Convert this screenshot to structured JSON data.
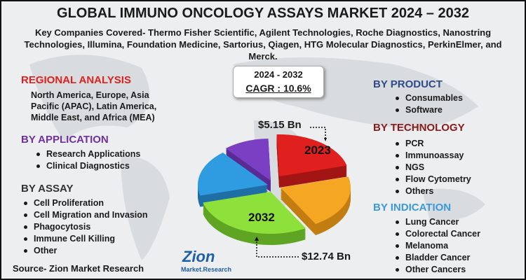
{
  "header": {
    "title": "GLOBAL IMMUNO ONCOLOGY ASSAYS MARKET 2024 – 2032",
    "subtitle": "Key Companies Covered- Thermo Fisher Scientific, Agilent Technologies, Roche Diagnostics, Nanostring Technologies, Illumina, Foundation Medicine, Sartorius, Qiagen, HTG Molecular Diagnostics, PerkinElmer, and Merck."
  },
  "cagr_box": {
    "period": "2024 - 2032",
    "cagr": "CAGR :  10.6%"
  },
  "regional_analysis": {
    "heading": "REGIONAL ANALYSIS",
    "text": "North America, Europe, Asia Pacific (APAC), Latin America, Middle East, and Africa (MEA)"
  },
  "by_application": {
    "heading": "BY APPLICATION",
    "items": [
      "Research Applications",
      "Clinical Diagnostics"
    ]
  },
  "by_assay": {
    "heading": "BY ASSAY",
    "items": [
      "Cell Proliferation",
      "Cell Migration and Invasion",
      "Phagocytosis",
      "Immune Cell Killing",
      "Other"
    ]
  },
  "by_product": {
    "heading": "BY PRODUCT",
    "items": [
      "Consumables",
      "Software"
    ]
  },
  "by_technology": {
    "heading": "BY TECHNOLOGY",
    "items": [
      "PCR",
      "Immunoassay",
      "NGS",
      "Flow Cytometry",
      "Others"
    ]
  },
  "by_indication": {
    "heading": "BY INDICATION",
    "items": [
      "Lung Cancer",
      "Colorectal Cancer",
      "Melanoma",
      "Bladder Cancer",
      "Other Cancers"
    ]
  },
  "pie": {
    "label_2023": "2023",
    "label_2032": "2032",
    "value_2023": "$5.15 Bn",
    "value_2032": "$12.74 Bn"
  },
  "logo": {
    "name": "Zion",
    "tagline": "Market.Research"
  },
  "source": "Source- Zion Market Research"
}
